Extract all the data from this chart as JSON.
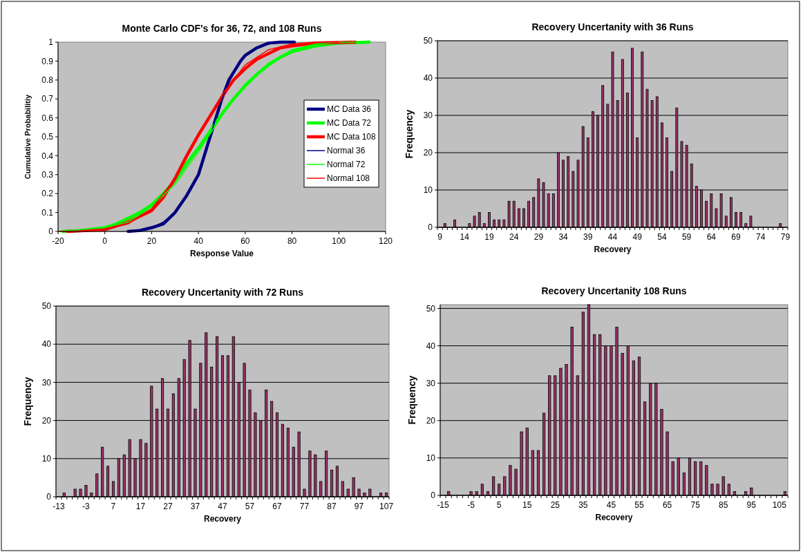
{
  "chart_data": [
    {
      "type": "line",
      "title": "Monte Carlo CDF's for 36, 72, and 108 Runs",
      "xlabel": "Response Value",
      "ylabel": "Cumulative Probabilitiy",
      "xlim": [
        -20,
        120
      ],
      "xticks": [
        -20,
        0,
        20,
        40,
        60,
        80,
        100,
        120
      ],
      "ylim": [
        0,
        1
      ],
      "yticks": [
        0,
        0.1,
        0.2,
        0.3,
        0.4,
        0.5,
        0.6,
        0.7,
        0.8,
        0.9,
        1
      ],
      "legend": "right",
      "series": [
        {
          "name": "MC Data 36",
          "color": "#000080",
          "x": [
            10,
            15,
            20,
            25,
            30,
            35,
            40,
            43,
            45,
            47,
            50,
            53,
            55,
            58,
            60,
            65,
            70,
            75,
            81
          ],
          "values": [
            0,
            0.005,
            0.02,
            0.04,
            0.1,
            0.19,
            0.3,
            0.42,
            0.5,
            0.58,
            0.7,
            0.8,
            0.84,
            0.9,
            0.93,
            0.97,
            0.995,
            1,
            1
          ]
        },
        {
          "name": "MC Data 72",
          "color": "#00ff00",
          "x": [
            -18,
            -10,
            0,
            5,
            10,
            15,
            20,
            25,
            30,
            35,
            40,
            45,
            50,
            55,
            60,
            65,
            70,
            75,
            80,
            90,
            100,
            113
          ],
          "values": [
            0,
            0.005,
            0.02,
            0.04,
            0.07,
            0.1,
            0.14,
            0.2,
            0.27,
            0.36,
            0.44,
            0.53,
            0.62,
            0.7,
            0.77,
            0.83,
            0.88,
            0.92,
            0.95,
            0.98,
            0.995,
            1
          ]
        },
        {
          "name": "MC Data 108",
          "color": "#ff0000",
          "x": [
            -16,
            0,
            5,
            10,
            15,
            20,
            25,
            30,
            35,
            40,
            45,
            50,
            55,
            60,
            65,
            70,
            75,
            80,
            90,
            107
          ],
          "values": [
            0,
            0.01,
            0.03,
            0.05,
            0.08,
            0.11,
            0.18,
            0.28,
            0.4,
            0.51,
            0.61,
            0.71,
            0.8,
            0.86,
            0.91,
            0.94,
            0.97,
            0.98,
            0.995,
            1
          ]
        },
        {
          "name": "Normal 36",
          "color": "#000080",
          "x": [
            10,
            15,
            20,
            25,
            30,
            35,
            40,
            45,
            50,
            55,
            60,
            65,
            70,
            75,
            80
          ],
          "values": [
            0,
            0.01,
            0.02,
            0.05,
            0.1,
            0.19,
            0.3,
            0.5,
            0.7,
            0.84,
            0.93,
            0.97,
            0.99,
            1,
            1
          ]
        },
        {
          "name": "Normal 72",
          "color": "#00ff00",
          "x": [
            -20,
            -10,
            0,
            10,
            20,
            30,
            40,
            50,
            60,
            70,
            80,
            90,
            100,
            110
          ],
          "values": [
            0,
            0.01,
            0.02,
            0.05,
            0.13,
            0.25,
            0.42,
            0.61,
            0.78,
            0.89,
            0.96,
            0.99,
            1,
            1
          ]
        },
        {
          "name": "Normal 108",
          "color": "#ff0000",
          "x": [
            -20,
            -10,
            0,
            10,
            20,
            30,
            40,
            50,
            60,
            70,
            80,
            90,
            100
          ],
          "values": [
            0,
            0,
            0.01,
            0.04,
            0.12,
            0.28,
            0.5,
            0.72,
            0.88,
            0.96,
            0.99,
            1,
            1
          ]
        }
      ]
    },
    {
      "type": "bar",
      "title": "Recovery Uncertanity with 36 Runs",
      "xlabel": "Recovery",
      "ylabel": "Frequency",
      "color": "#993366",
      "grid": "y",
      "ylim": [
        0,
        50
      ],
      "yticks": [
        0,
        10,
        20,
        30,
        40,
        50
      ],
      "categories": [
        "9",
        null,
        null,
        null,
        null,
        "14",
        null,
        null,
        null,
        null,
        "19",
        null,
        null,
        null,
        null,
        "24",
        null,
        null,
        null,
        null,
        "29",
        null,
        null,
        null,
        null,
        "34",
        null,
        null,
        null,
        null,
        "39",
        null,
        null,
        null,
        null,
        "44",
        null,
        null,
        null,
        null,
        "49",
        null,
        null,
        null,
        null,
        "54",
        null,
        null,
        null,
        null,
        "59",
        null,
        null,
        null,
        null,
        "64",
        null,
        null,
        null,
        null,
        "69",
        null,
        null,
        null,
        null,
        "74",
        null,
        null,
        null,
        null,
        "79"
      ],
      "values": [
        0,
        1,
        0,
        2,
        0,
        0,
        1,
        3,
        4,
        1,
        4,
        2,
        2,
        2,
        7,
        7,
        5,
        5,
        7,
        8,
        13,
        12,
        9,
        9,
        20,
        18,
        19,
        15,
        18,
        27,
        24,
        31,
        30,
        38,
        33,
        47,
        34,
        45,
        36,
        48,
        24,
        47,
        37,
        34,
        35,
        28,
        24,
        15,
        32,
        23,
        22,
        17,
        11,
        10,
        7,
        9,
        5,
        9,
        3,
        8,
        4,
        4,
        1,
        3,
        0,
        0,
        0,
        0,
        0,
        1,
        0
      ]
    },
    {
      "type": "bar",
      "title": "Recovery Uncertanity with 72 Runs",
      "xlabel": "Recovery",
      "ylabel": "Frequency",
      "color": "#993366",
      "grid": "y",
      "ylim": [
        0,
        50
      ],
      "yticks": [
        0,
        10,
        20,
        30,
        40,
        50
      ],
      "categories": [
        "-13",
        null,
        null,
        null,
        null,
        "-3",
        null,
        null,
        null,
        null,
        "7",
        null,
        null,
        null,
        null,
        "17",
        null,
        null,
        null,
        null,
        "27",
        null,
        null,
        null,
        null,
        "37",
        null,
        null,
        null,
        null,
        "47",
        null,
        null,
        null,
        null,
        "57",
        null,
        null,
        null,
        null,
        "67",
        null,
        null,
        null,
        null,
        "77",
        null,
        null,
        null,
        null,
        "87",
        null,
        null,
        null,
        null,
        "97",
        null,
        null,
        null,
        null,
        "107"
      ],
      "values": [
        0,
        1,
        0,
        2,
        2,
        3,
        1,
        6,
        13,
        8,
        4,
        10,
        11,
        15,
        10,
        15,
        14,
        29,
        23,
        31,
        23,
        27,
        31,
        36,
        41,
        23,
        35,
        43,
        34,
        42,
        37,
        37,
        42,
        30,
        35,
        28,
        22,
        20,
        28,
        25,
        22,
        19,
        18,
        13,
        17,
        2,
        12,
        11,
        4,
        12,
        7,
        8,
        4,
        2,
        5,
        2,
        1,
        2,
        0,
        1,
        1
      ]
    },
    {
      "type": "bar",
      "title": "Recovery Uncertanity 108 Runs",
      "xlabel": "Recovery",
      "ylabel": "Frequency",
      "color": "#993366",
      "grid": "y",
      "ylim": [
        0,
        51
      ],
      "yticks": [
        0,
        10,
        20,
        30,
        40,
        50
      ],
      "categories": [
        "-15",
        null,
        null,
        null,
        null,
        "-5",
        null,
        null,
        null,
        null,
        "5",
        null,
        null,
        null,
        null,
        "15",
        null,
        null,
        null,
        null,
        "25",
        null,
        null,
        null,
        null,
        "35",
        null,
        null,
        null,
        null,
        "45",
        null,
        null,
        null,
        null,
        "55",
        null,
        null,
        null,
        null,
        "65",
        null,
        null,
        null,
        null,
        "75",
        null,
        null,
        null,
        null,
        "85",
        null,
        null,
        null,
        null,
        "95",
        null,
        null,
        null,
        null,
        "105",
        null
      ],
      "values": [
        0,
        1,
        0,
        0,
        0,
        1,
        1,
        3,
        1,
        5,
        3,
        5,
        8,
        7,
        17,
        18,
        12,
        12,
        22,
        32,
        32,
        34,
        35,
        45,
        32,
        49,
        51,
        43,
        43,
        40,
        40,
        45,
        38,
        40,
        36,
        37,
        25,
        30,
        30,
        23,
        17,
        9,
        10,
        6,
        10,
        9,
        9,
        8,
        3,
        3,
        5,
        3,
        1,
        0,
        1,
        2,
        0,
        0,
        0,
        0,
        0,
        1
      ]
    }
  ]
}
